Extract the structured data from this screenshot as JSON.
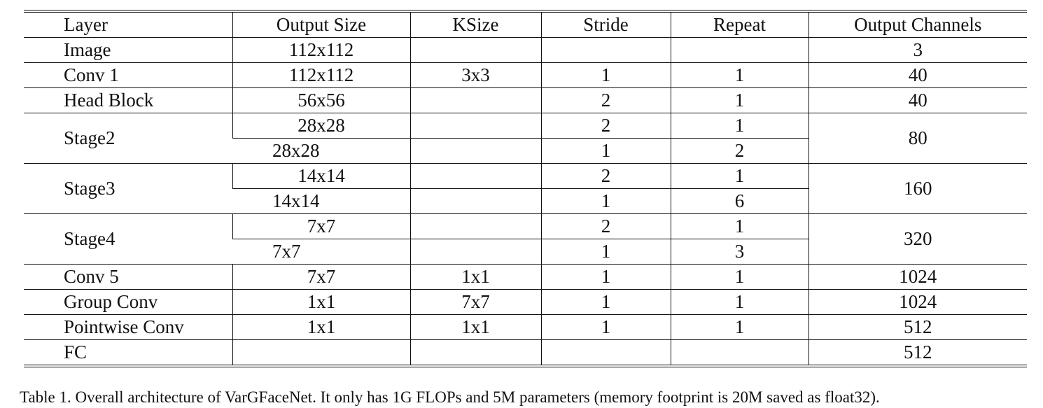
{
  "table": {
    "headers": [
      "Layer",
      "Output Size",
      "KSize",
      "Stride",
      "Repeat",
      "Output Channels"
    ],
    "rows": [
      {
        "layer": "Image",
        "output_size": "112x112",
        "ksize": "",
        "stride": "",
        "repeat": "",
        "channels": "3"
      },
      {
        "layer": "Conv 1",
        "output_size": "112x112",
        "ksize": "3x3",
        "stride": "1",
        "repeat": "1",
        "channels": "40"
      },
      {
        "layer": "Head Block",
        "output_size": "56x56",
        "ksize": "",
        "stride": "2",
        "repeat": "1",
        "channels": "40"
      },
      {
        "layer": "Stage2",
        "output_size": "28x28",
        "ksize": "",
        "stride": "2",
        "repeat": "1",
        "channels": "80"
      },
      {
        "output_size": "28x28",
        "ksize": "",
        "stride": "1",
        "repeat": "2"
      },
      {
        "layer": "Stage3",
        "output_size": "14x14",
        "ksize": "",
        "stride": "2",
        "repeat": "1",
        "channels": "160"
      },
      {
        "output_size": "14x14",
        "ksize": "",
        "stride": "1",
        "repeat": "6"
      },
      {
        "layer": "Stage4",
        "output_size": "7x7",
        "ksize": "",
        "stride": "2",
        "repeat": "1",
        "channels": "320"
      },
      {
        "output_size": "7x7",
        "ksize": "",
        "stride": "1",
        "repeat": "3"
      },
      {
        "layer": "Conv 5",
        "output_size": "7x7",
        "ksize": "1x1",
        "stride": "1",
        "repeat": "1",
        "channels": "1024"
      },
      {
        "layer": "Group Conv",
        "output_size": "1x1",
        "ksize": "7x7",
        "stride": "1",
        "repeat": "1",
        "channels": "1024"
      },
      {
        "layer": "Pointwise Conv",
        "output_size": "1x1",
        "ksize": "1x1",
        "stride": "1",
        "repeat": "1",
        "channels": "512"
      },
      {
        "layer": "FC",
        "output_size": "",
        "ksize": "",
        "stride": "",
        "repeat": "",
        "channels": "512"
      }
    ]
  },
  "caption": "Table 1. Overall architecture of VarGFaceNet. It only has 1G FLOPs and 5M parameters (memory footprint is 20M saved as float32)."
}
